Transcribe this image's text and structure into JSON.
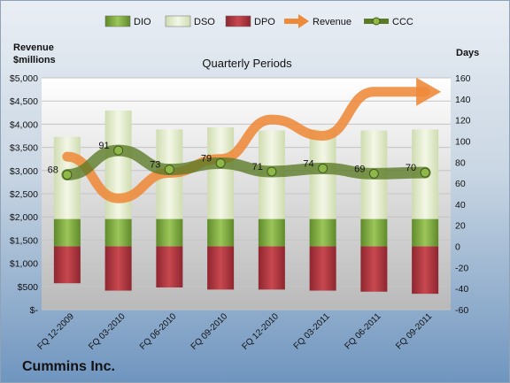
{
  "chart_data": {
    "type": "bar",
    "title": "Quarterly Periods",
    "categories": [
      "FQ 12-2009",
      "FQ 03-2010",
      "FQ 06-2010",
      "FQ 09-2010",
      "FQ 12-2010",
      "FQ 03-2011",
      "FQ 06-2011",
      "FQ 09-2011"
    ],
    "left_axis": {
      "label_line1": "Revenue",
      "label_line2": "$millions",
      "ylim": [
        0,
        5000
      ],
      "step": 500,
      "ticks": [
        "$-",
        "$500",
        "$1,000",
        "$1,500",
        "$2,000",
        "$2,500",
        "$3,000",
        "$3,500",
        "$4,000",
        "$4,500",
        "$5,000"
      ]
    },
    "right_axis": {
      "label": "Days",
      "ylim": [
        -60,
        160
      ],
      "step": 20
    },
    "series": [
      {
        "name": "DIO",
        "kind": "bar",
        "axis": "right",
        "stack_from": 0,
        "values": [
          26,
          26,
          26,
          26,
          26,
          26,
          26,
          26
        ],
        "color": "#7aa83a"
      },
      {
        "name": "DSO",
        "kind": "bar",
        "axis": "right",
        "stack_from": 26,
        "values": [
          78,
          103,
          85,
          87,
          84,
          85,
          84,
          85
        ],
        "color": "#e6efcd"
      },
      {
        "name": "DPO",
        "kind": "bar",
        "axis": "right",
        "stack_from": 0,
        "values": [
          -35,
          -42,
          -39,
          -41,
          -41,
          -42,
          -43,
          -45
        ],
        "color": "#b0333b"
      },
      {
        "name": "Revenue",
        "kind": "line",
        "axis": "left",
        "values": [
          3300,
          2400,
          2950,
          3250,
          4100,
          3750,
          4700,
          4700
        ],
        "color": "#ee8a3a"
      },
      {
        "name": "CCC",
        "kind": "line",
        "axis": "right",
        "values": [
          68,
          91,
          73,
          79,
          71,
          74,
          69,
          70
        ],
        "color": "#5a7a25"
      }
    ],
    "data_labels": [
      "68",
      "91",
      "73",
      "79",
      "71",
      "74",
      "69",
      "70"
    ],
    "legend_position": "top"
  },
  "company": "Cummins Inc."
}
